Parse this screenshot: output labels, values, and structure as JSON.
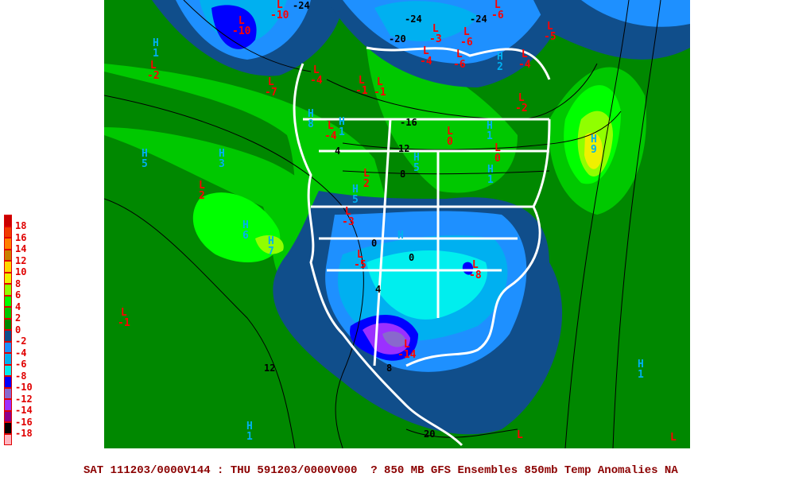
{
  "caption": "SAT 111203/0000V144 : THU 591203/0000V000  ? 850 MB GFS Ensembles 850mb Temp Anomalies NA",
  "legend": {
    "items": [
      {
        "label": "18",
        "color": "#c80000"
      },
      {
        "label": "16",
        "color": "#f03c00"
      },
      {
        "label": "14",
        "color": "#ff8000"
      },
      {
        "label": "12",
        "color": "#c88000"
      },
      {
        "label": "10",
        "color": "#ffd700"
      },
      {
        "label": "8",
        "color": "#f0f000"
      },
      {
        "label": "6",
        "color": "#90ff00"
      },
      {
        "label": "4",
        "color": "#00ff00"
      },
      {
        "label": "2",
        "color": "#00c800"
      },
      {
        "label": "0",
        "color": "#008800"
      },
      {
        "label": "-2",
        "color": "#104e8b"
      },
      {
        "label": "-4",
        "color": "#1e90ff"
      },
      {
        "label": "-6",
        "color": "#00b0f0"
      },
      {
        "label": "-8",
        "color": "#00eeee"
      },
      {
        "label": "-10",
        "color": "#0000ff"
      },
      {
        "label": "-12",
        "color": "#8968cd"
      },
      {
        "label": "-14",
        "color": "#9b30ff"
      },
      {
        "label": "-16",
        "color": "#8b008b"
      },
      {
        "label": "-18",
        "color": "#000000"
      },
      {
        "label": "",
        "color": "#ffb6c1"
      }
    ]
  },
  "centers": [
    {
      "type": "L",
      "value": "-10"
    },
    {
      "type": "L",
      "value": "-10"
    },
    {
      "type": "H",
      "value": "1"
    },
    {
      "type": "L",
      "value": "-2"
    },
    {
      "type": "L",
      "value": "-7"
    },
    {
      "type": "L",
      "value": "-4"
    },
    {
      "type": "L",
      "value": "-1"
    },
    {
      "type": "L",
      "value": "-1"
    },
    {
      "type": "L",
      "value": "-4"
    },
    {
      "type": "H",
      "value": "8"
    },
    {
      "type": "H",
      "value": "1"
    },
    {
      "type": "H",
      "value": "5"
    },
    {
      "type": "H",
      "value": "3"
    },
    {
      "type": "L",
      "value": "2"
    },
    {
      "type": "L",
      "value": "2"
    },
    {
      "type": "H",
      "value": "5"
    },
    {
      "type": "L",
      "value": "0"
    },
    {
      "type": "H",
      "value": "1"
    },
    {
      "type": "L",
      "value": "0"
    },
    {
      "type": "H",
      "value": "1"
    },
    {
      "type": "H",
      "value": "9"
    },
    {
      "type": "L",
      "value": "-2"
    },
    {
      "type": "L",
      "value": "-5"
    },
    {
      "type": "L",
      "value": "-4"
    },
    {
      "type": "H",
      "value": "2"
    },
    {
      "type": "L",
      "value": "-6"
    },
    {
      "type": "L",
      "value": "-6"
    },
    {
      "type": "L",
      "value": "-6"
    },
    {
      "type": "L",
      "value": "-3"
    },
    {
      "type": "L",
      "value": "-4"
    },
    {
      "type": "H",
      "value": "6"
    },
    {
      "type": "H",
      "value": "7"
    },
    {
      "type": "L",
      "value": "-3"
    },
    {
      "type": "H",
      "value": "5"
    },
    {
      "type": "L",
      "value": "-5"
    },
    {
      "type": "H",
      "value": "1"
    },
    {
      "type": "L",
      "value": "-8"
    },
    {
      "type": "L",
      "value": "-1"
    },
    {
      "type": "L",
      "value": "-14"
    },
    {
      "type": "H",
      "value": "1"
    },
    {
      "type": "H",
      "value": "1"
    },
    {
      "type": "L",
      "value": ""
    },
    {
      "type": "L",
      "value": ""
    }
  ],
  "contour_labels": [
    "-24",
    "-24",
    "-24",
    "-20",
    "-16",
    "12",
    "8",
    "4",
    "0",
    "0",
    "4",
    "12",
    "8",
    "20"
  ],
  "colors": {
    "low": "#ff0000",
    "high": "#00b0f0",
    "land_outline": "#ffffff",
    "contour": "#000000"
  }
}
